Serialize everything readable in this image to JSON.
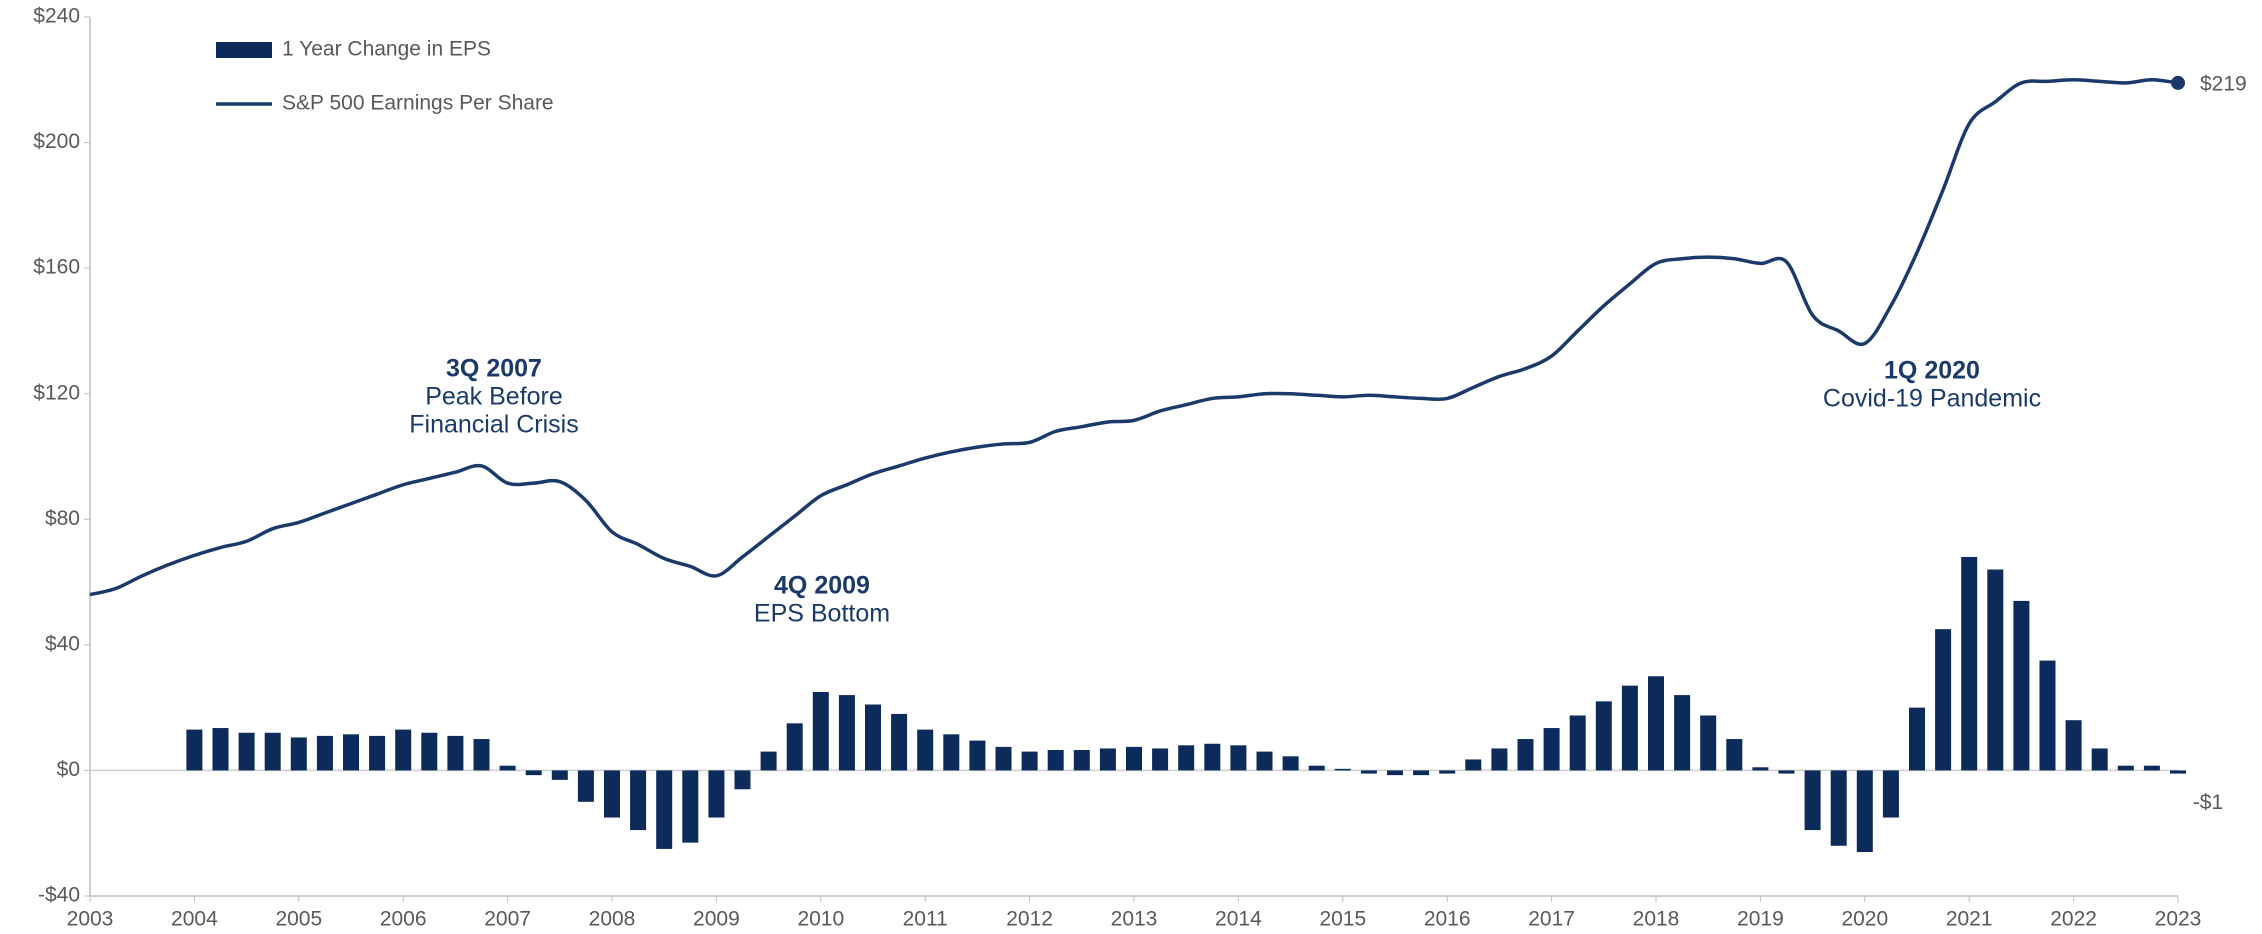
{
  "chart_data": {
    "type": "combo",
    "xlim": [
      2003,
      2023
    ],
    "xticks": [
      2003,
      2004,
      2005,
      2006,
      2007,
      2008,
      2009,
      2010,
      2011,
      2012,
      2013,
      2014,
      2015,
      2016,
      2017,
      2018,
      2019,
      2020,
      2021,
      2022,
      2023
    ],
    "ylim": [
      -40,
      240
    ],
    "yticks": [
      {
        "value": -40,
        "label": "-$40"
      },
      {
        "value": 0,
        "label": "$0"
      },
      {
        "value": 40,
        "label": "$40"
      },
      {
        "value": 80,
        "label": "$80"
      },
      {
        "value": 120,
        "label": "$120"
      },
      {
        "value": 160,
        "label": "$160"
      },
      {
        "value": 200,
        "label": "$200"
      },
      {
        "value": 240,
        "label": "$240"
      }
    ],
    "legend": "upper left",
    "series": [
      {
        "name": "1 Year Change in EPS",
        "type": "bar",
        "color": "#0d2b5a",
        "x": [
          2004,
          2004.25,
          2004.5,
          2004.75,
          2005,
          2005.25,
          2005.5,
          2005.75,
          2006,
          2006.25,
          2006.5,
          2006.75,
          2007,
          2007.25,
          2007.5,
          2007.75,
          2008,
          2008.25,
          2008.5,
          2008.75,
          2009,
          2009.25,
          2009.5,
          2009.75,
          2010,
          2010.25,
          2010.5,
          2010.75,
          2011,
          2011.25,
          2011.5,
          2011.75,
          2012,
          2012.25,
          2012.5,
          2012.75,
          2013,
          2013.25,
          2013.5,
          2013.75,
          2014,
          2014.25,
          2014.5,
          2014.75,
          2015,
          2015.25,
          2015.5,
          2015.75,
          2016,
          2016.25,
          2016.5,
          2016.75,
          2017,
          2017.25,
          2017.5,
          2017.75,
          2018,
          2018.25,
          2018.5,
          2018.75,
          2019,
          2019.25,
          2019.5,
          2019.75,
          2020,
          2020.25,
          2020.5,
          2020.75,
          2021,
          2021.25,
          2021.5,
          2021.75,
          2022,
          2022.25,
          2022.5,
          2022.75,
          2023
        ],
        "values": [
          13,
          13.5,
          12,
          12,
          10.5,
          11,
          11.5,
          11,
          13,
          12,
          11,
          10,
          1.5,
          -1.5,
          -3,
          -10,
          -15,
          -19,
          -25,
          -23,
          -15,
          -6,
          6,
          15,
          25,
          24,
          21,
          18,
          13,
          11.5,
          9.5,
          7.5,
          6,
          6.5,
          6.5,
          7,
          7.5,
          7,
          8,
          8.5,
          8,
          6,
          4.5,
          1.5,
          0.5,
          -1,
          -1.5,
          -1.5,
          -1,
          3.5,
          7,
          10,
          13.5,
          17.5,
          22,
          27,
          30,
          24,
          17.5,
          10,
          1,
          -1,
          -19,
          -24,
          -26,
          -15,
          20,
          45,
          68,
          64,
          54,
          35,
          16,
          7,
          1.5,
          1.5,
          -1
        ],
        "value_labels": [
          null,
          null,
          null,
          null,
          null,
          null,
          null,
          null,
          null,
          null,
          null,
          null,
          null,
          null,
          null,
          null,
          null,
          null,
          null,
          null,
          null,
          null,
          null,
          null,
          null,
          null,
          null,
          null,
          null,
          null,
          null,
          null,
          null,
          null,
          null,
          null,
          null,
          null,
          null,
          null,
          null,
          null,
          null,
          null,
          null,
          null,
          null,
          null,
          null,
          null,
          null,
          null,
          null,
          null,
          null,
          null,
          null,
          null,
          null,
          null,
          null,
          null,
          null,
          null,
          null,
          null,
          null,
          null,
          null,
          null,
          null,
          null,
          null,
          null,
          null,
          null,
          "-$1"
        ]
      },
      {
        "name": "S&P 500 Earnings Per Share",
        "type": "line",
        "color": "#1b3a6b",
        "x": [
          2003,
          2003.25,
          2003.5,
          2003.75,
          2004,
          2004.25,
          2004.5,
          2004.75,
          2005,
          2005.25,
          2005.5,
          2005.75,
          2006,
          2006.25,
          2006.5,
          2006.75,
          2007,
          2007.25,
          2007.5,
          2007.75,
          2008,
          2008.25,
          2008.5,
          2008.75,
          2009,
          2009.25,
          2009.5,
          2009.75,
          2010,
          2010.25,
          2010.5,
          2010.75,
          2011,
          2011.25,
          2011.5,
          2011.75,
          2012,
          2012.25,
          2012.5,
          2012.75,
          2013,
          2013.25,
          2013.5,
          2013.75,
          2014,
          2014.25,
          2014.5,
          2014.75,
          2015,
          2015.25,
          2015.5,
          2015.75,
          2016,
          2016.25,
          2016.5,
          2016.75,
          2017,
          2017.25,
          2017.5,
          2017.75,
          2018,
          2018.25,
          2018.5,
          2018.75,
          2019,
          2019.25,
          2019.5,
          2019.75,
          2020,
          2020.25,
          2020.5,
          2020.75,
          2021,
          2021.25,
          2021.5,
          2021.75,
          2022,
          2022.25,
          2022.5,
          2022.75,
          2023
        ],
        "values": [
          56,
          58,
          62,
          65.5,
          68.5,
          71,
          73,
          77,
          79,
          82,
          85,
          88,
          91,
          93,
          95,
          97,
          91.5,
          91.5,
          92,
          86,
          76,
          72,
          67.5,
          65,
          62,
          68,
          74.5,
          81,
          87.5,
          91,
          94.5,
          97,
          99.5,
          101.5,
          103,
          104,
          104.5,
          108,
          109.5,
          111,
          111.5,
          114.5,
          116.5,
          118.5,
          119,
          120,
          120,
          119.5,
          119,
          119.5,
          119,
          118.5,
          118.5,
          122,
          125.5,
          128,
          132,
          140,
          148,
          155,
          161.5,
          163,
          163.5,
          163,
          161.5,
          162,
          145,
          140,
          136,
          148,
          165,
          185,
          206,
          213,
          219,
          219.5,
          220,
          219.5,
          219,
          220,
          219
        ],
        "value_labels": [
          null,
          null,
          null,
          null,
          null,
          null,
          null,
          null,
          null,
          null,
          null,
          null,
          null,
          null,
          null,
          null,
          null,
          null,
          null,
          null,
          null,
          null,
          null,
          null,
          null,
          null,
          null,
          null,
          null,
          null,
          null,
          null,
          null,
          null,
          null,
          null,
          null,
          null,
          null,
          null,
          null,
          null,
          null,
          null,
          null,
          null,
          null,
          null,
          null,
          null,
          null,
          null,
          null,
          null,
          null,
          null,
          null,
          null,
          null,
          null,
          null,
          null,
          null,
          null,
          null,
          null,
          null,
          null,
          null,
          null,
          null,
          null,
          null,
          null,
          null,
          null,
          null,
          null,
          null,
          null,
          "$219"
        ]
      }
    ],
    "annotations": [
      {
        "lines": [
          "3Q 2007",
          "Peak Before",
          "Financial Crisis"
        ]
      },
      {
        "lines": [
          "4Q 2009",
          "EPS Bottom"
        ]
      },
      {
        "lines": [
          "1Q 2020",
          "Covid-19 Pandemic"
        ]
      }
    ]
  }
}
